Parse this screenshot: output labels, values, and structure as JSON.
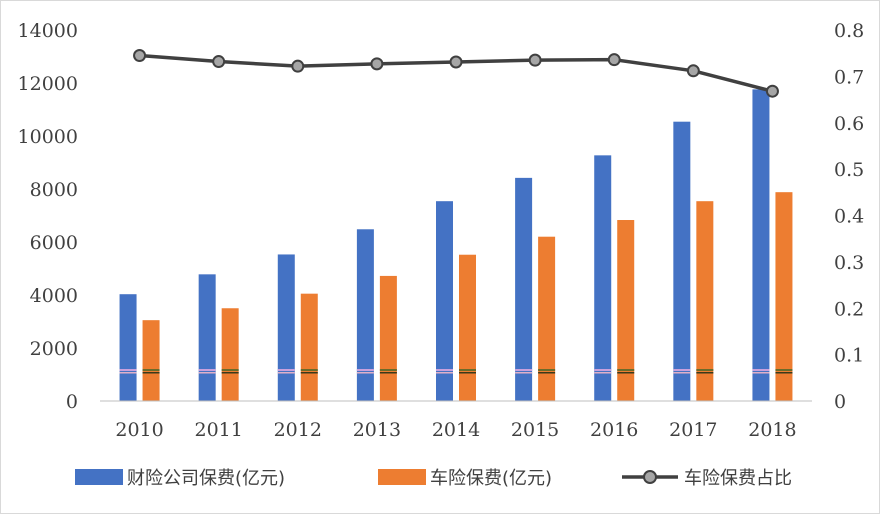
{
  "chart_data": {
    "type": "bar",
    "categories": [
      "2010",
      "2011",
      "2012",
      "2013",
      "2014",
      "2015",
      "2016",
      "2017",
      "2018"
    ],
    "series": [
      {
        "name": "财险公司保费(亿元)",
        "type": "bar",
        "axis": "left",
        "color": "#4472c4",
        "values": [
          4030,
          4780,
          5530,
          6480,
          7540,
          8420,
          9270,
          10540,
          11760
        ]
      },
      {
        "name": "车险保费(亿元)",
        "type": "bar",
        "axis": "left",
        "color": "#ed7d31",
        "values": [
          3050,
          3500,
          4050,
          4720,
          5520,
          6200,
          6830,
          7540,
          7880
        ]
      },
      {
        "name": "车险保费占比",
        "type": "line",
        "axis": "right",
        "color": "#404040",
        "marker_fill": "#a6a6a6",
        "values": [
          0.745,
          0.732,
          0.722,
          0.727,
          0.731,
          0.735,
          0.736,
          0.712,
          0.668
        ]
      }
    ],
    "y_left": {
      "min": 0,
      "max": 14000,
      "ticks": [
        "0",
        "2000",
        "4000",
        "6000",
        "8000",
        "10000",
        "12000",
        "14000"
      ]
    },
    "y_right": {
      "min": 0,
      "max": 0.8,
      "ticks": [
        "0",
        "0.1",
        "0.2",
        "0.3",
        "0.4",
        "0.5",
        "0.6",
        "0.7",
        "0.8"
      ]
    },
    "title": "",
    "xlabel": "",
    "ylabel": "",
    "grid": false,
    "legend_position": "bottom"
  }
}
